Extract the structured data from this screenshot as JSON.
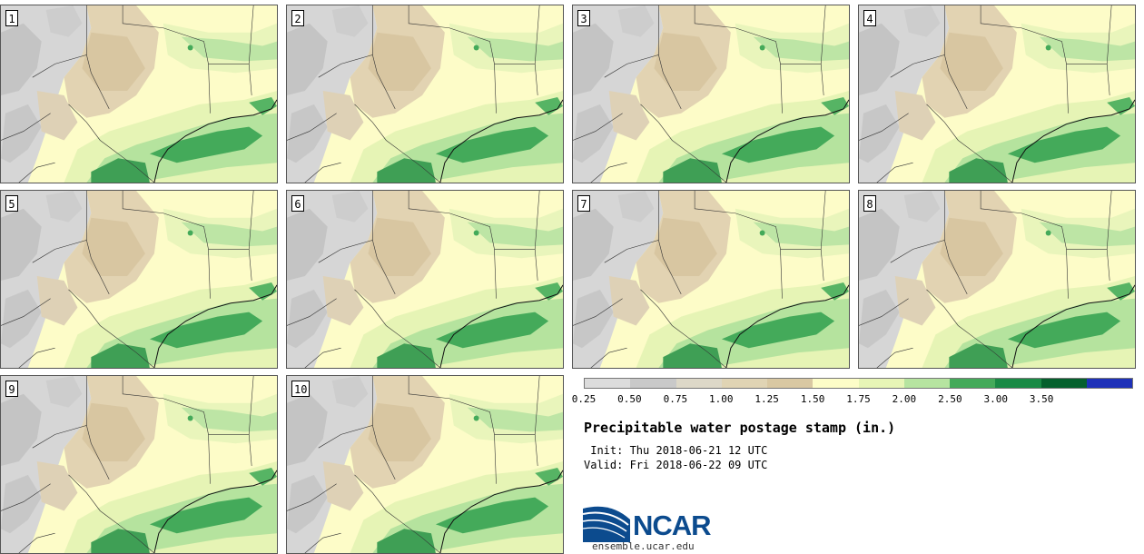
{
  "panels": [
    {
      "label": "1"
    },
    {
      "label": "2"
    },
    {
      "label": "3"
    },
    {
      "label": "4"
    },
    {
      "label": "5"
    },
    {
      "label": "6"
    },
    {
      "label": "7"
    },
    {
      "label": "8"
    },
    {
      "label": "9"
    },
    {
      "label": "10"
    }
  ],
  "colorbar": {
    "colors": [
      "#dcdcdc",
      "#c9c9c9",
      "#ddd8c8",
      "#e0d4b4",
      "#d9c8a2",
      "#fdfdc8",
      "#e7f5b6",
      "#b6e4a0",
      "#44aa5a",
      "#198a45",
      "#05602d",
      "#1e31b8"
    ],
    "ticks": [
      "0.25",
      "0.50",
      "0.75",
      "1.00",
      "1.25",
      "1.50",
      "1.75",
      "2.00",
      "2.50",
      "3.00",
      "3.50"
    ]
  },
  "title": "Precipitable water postage stamp (in.)",
  "init_line": " Init: Thu 2018-06-21 12 UTC",
  "valid_line": "Valid: Fri 2018-06-22 09 UTC",
  "logo": {
    "text": "NCAR",
    "url": "ensemble.ucar.edu",
    "brand_color": "#0c4b8e"
  }
}
